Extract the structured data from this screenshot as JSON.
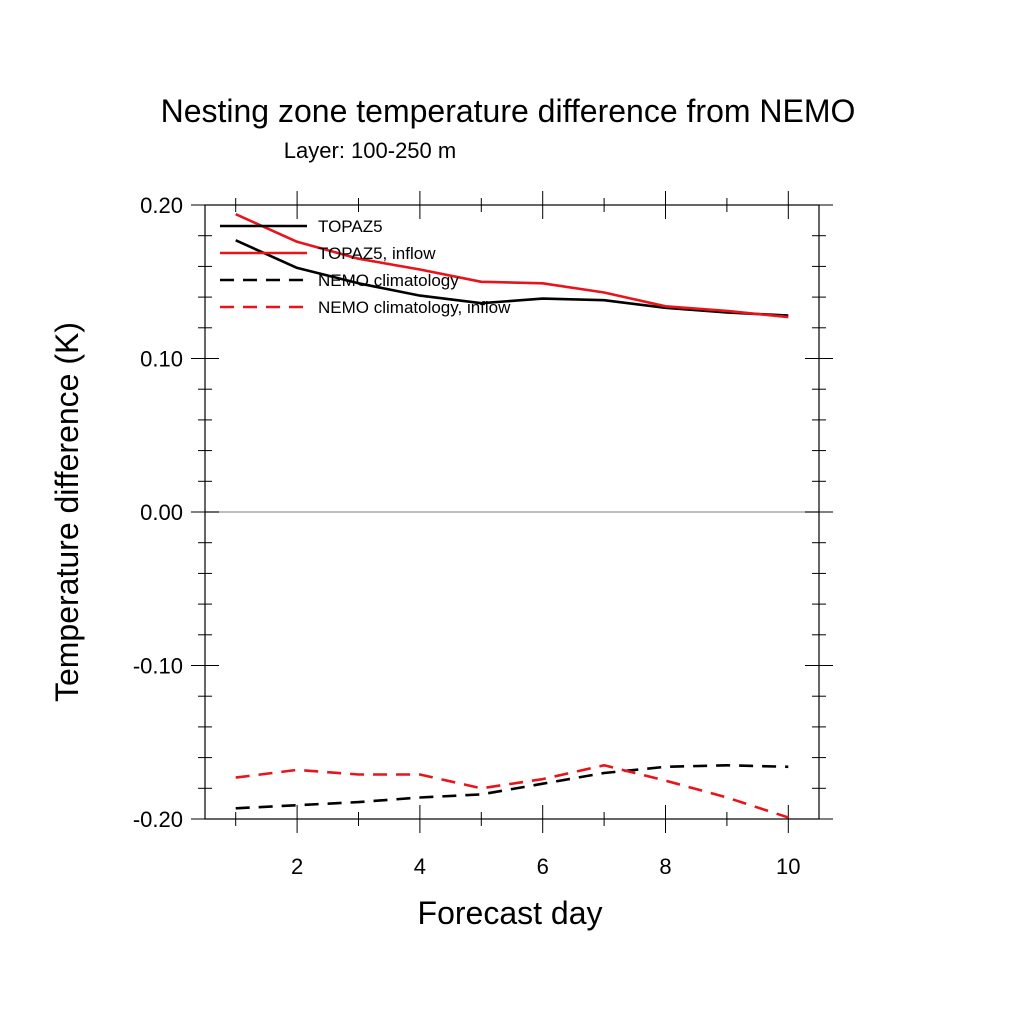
{
  "chart_data": {
    "type": "line",
    "title": "Nesting zone temperature difference from NEMO",
    "subtitle": "Layer: 100-250 m",
    "xlabel": "Forecast day",
    "ylabel": "Temperature difference (K)",
    "xlim": [
      0.5,
      10.5
    ],
    "ylim": [
      -0.2,
      0.2
    ],
    "x_ticks": [
      2,
      4,
      6,
      8,
      10
    ],
    "x_tick_labels": [
      "2",
      "4",
      "6",
      "8",
      "10"
    ],
    "y_ticks": [
      -0.2,
      -0.1,
      0.0,
      0.1,
      0.2
    ],
    "y_tick_labels": [
      "-0.20",
      "-0.10",
      "0.00",
      "0.10",
      "0.20"
    ],
    "zero_line": true,
    "grid": false,
    "legend_position": "top-left",
    "x": [
      1,
      2,
      3,
      4,
      5,
      6,
      7,
      8,
      9,
      10
    ],
    "series": [
      {
        "name": "TOPAZ5",
        "color": "#000000",
        "dash": "solid",
        "values": [
          0.177,
          0.159,
          0.149,
          0.141,
          0.136,
          0.139,
          0.138,
          0.133,
          0.13,
          0.128
        ]
      },
      {
        "name": "TOPAZ5, inflow",
        "color": "#e8141c",
        "dash": "solid",
        "values": [
          0.194,
          0.176,
          0.165,
          0.158,
          0.15,
          0.149,
          0.143,
          0.134,
          0.131,
          0.127
        ]
      },
      {
        "name": "NEMO climatology",
        "color": "#000000",
        "dash": "dashed",
        "values": [
          -0.193,
          -0.191,
          -0.189,
          -0.186,
          -0.184,
          -0.177,
          -0.17,
          -0.166,
          -0.165,
          -0.166
        ]
      },
      {
        "name": "NEMO climatology, inflow",
        "color": "#e8141c",
        "dash": "dashed",
        "values": [
          -0.173,
          -0.168,
          -0.171,
          -0.171,
          -0.18,
          -0.174,
          -0.165,
          -0.175,
          -0.186,
          -0.199
        ]
      }
    ]
  }
}
